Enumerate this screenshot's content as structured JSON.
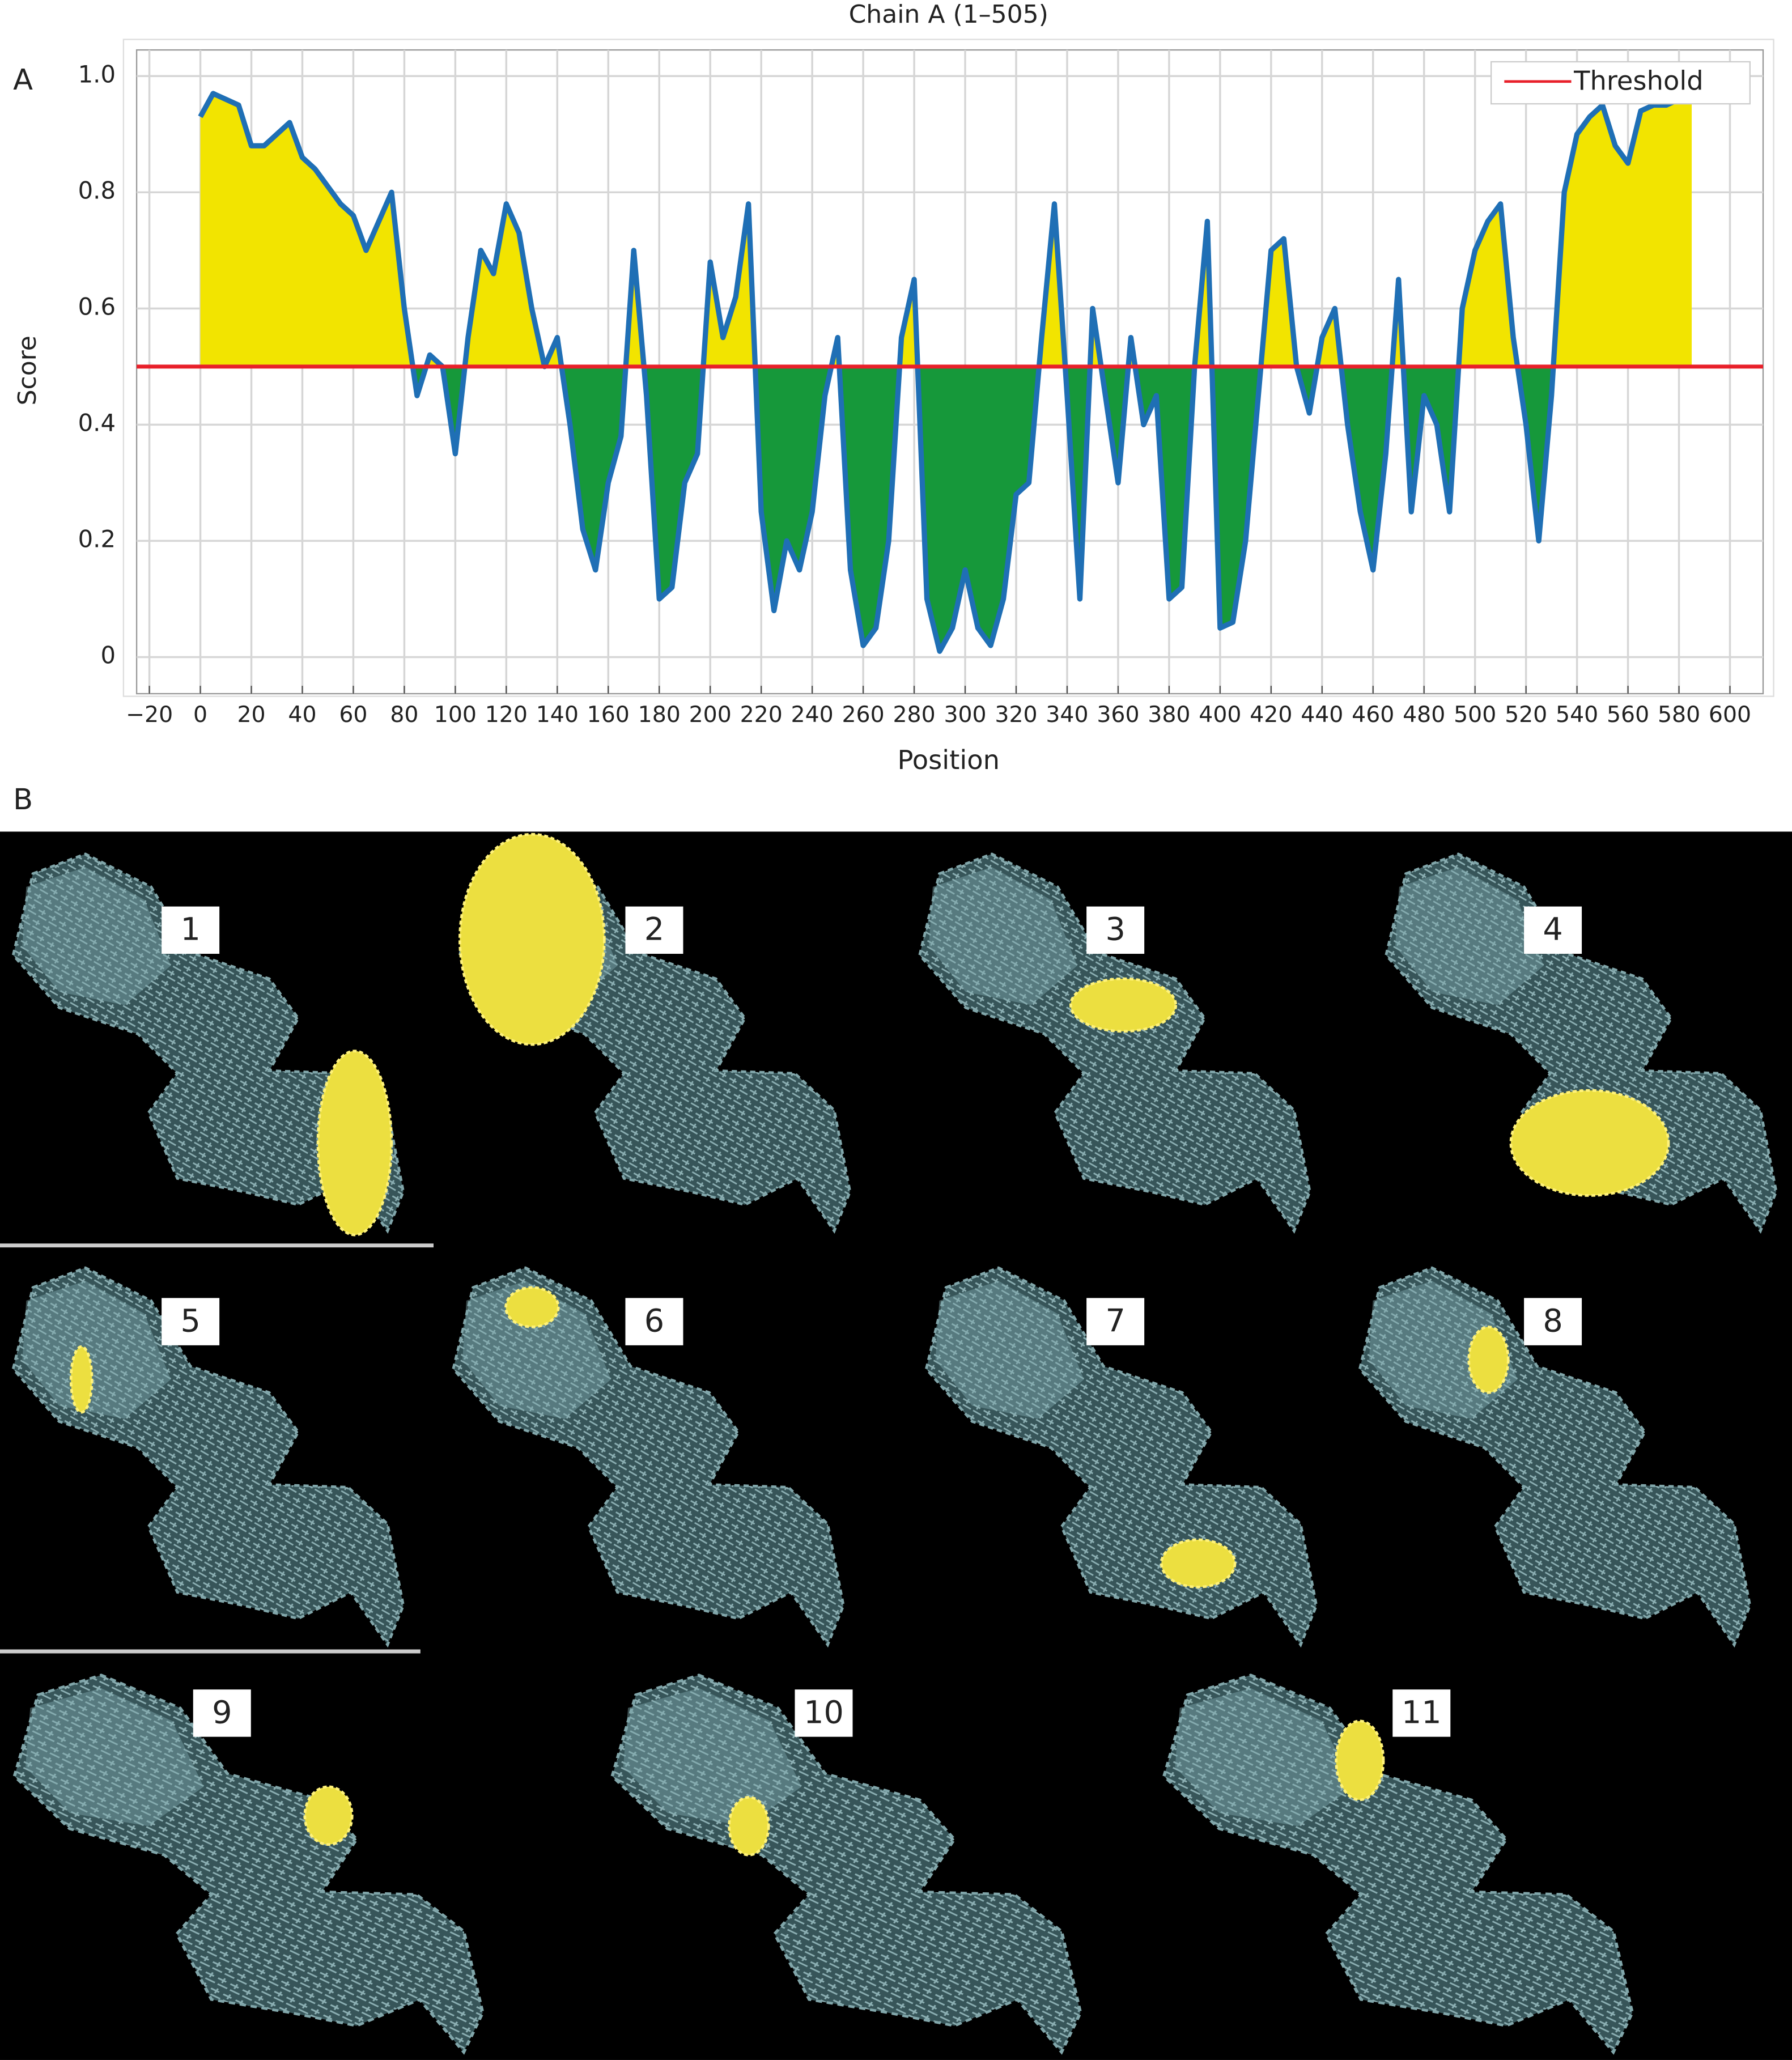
{
  "panels": [
    "A",
    "B"
  ],
  "structures": [
    "1",
    "2",
    "3",
    "4",
    "5",
    "6",
    "7",
    "8",
    "9",
    "10",
    "11"
  ],
  "chart_data": {
    "type": "line",
    "title": "Chain A (1–505)",
    "xlabel": "Position",
    "ylabel": "Score",
    "x": [
      0,
      5,
      10,
      15,
      20,
      25,
      30,
      35,
      40,
      45,
      50,
      55,
      60,
      65,
      70,
      75,
      80,
      85,
      90,
      95,
      100,
      105,
      110,
      115,
      120,
      125,
      130,
      135,
      140,
      145,
      150,
      155,
      160,
      165,
      170,
      175,
      180,
      185,
      190,
      195,
      200,
      205,
      210,
      215,
      220,
      225,
      230,
      235,
      240,
      245,
      250,
      255,
      260,
      265,
      270,
      275,
      280,
      285,
      290,
      295,
      300,
      305,
      310,
      315,
      320,
      325,
      330,
      335,
      340,
      345,
      350,
      355,
      360,
      365,
      370,
      375,
      380,
      385,
      390,
      395,
      400,
      405,
      410,
      415,
      420,
      425,
      430,
      435,
      440,
      445,
      450,
      455,
      460,
      465,
      470,
      475,
      480,
      485,
      490,
      495,
      500,
      505,
      510,
      515,
      520,
      525,
      530,
      535,
      540,
      545,
      550,
      555,
      560,
      565,
      570,
      575,
      580,
      585
    ],
    "values": [
      0.93,
      0.97,
      0.96,
      0.95,
      0.88,
      0.88,
      0.9,
      0.92,
      0.86,
      0.84,
      0.81,
      0.78,
      0.76,
      0.7,
      0.75,
      0.8,
      0.6,
      0.45,
      0.52,
      0.5,
      0.35,
      0.55,
      0.7,
      0.66,
      0.78,
      0.73,
      0.6,
      0.5,
      0.55,
      0.4,
      0.22,
      0.15,
      0.3,
      0.38,
      0.7,
      0.45,
      0.1,
      0.12,
      0.3,
      0.35,
      0.68,
      0.55,
      0.62,
      0.78,
      0.25,
      0.08,
      0.2,
      0.15,
      0.25,
      0.45,
      0.55,
      0.15,
      0.02,
      0.05,
      0.2,
      0.55,
      0.65,
      0.1,
      0.01,
      0.05,
      0.15,
      0.05,
      0.02,
      0.1,
      0.28,
      0.3,
      0.55,
      0.78,
      0.45,
      0.1,
      0.6,
      0.45,
      0.3,
      0.55,
      0.4,
      0.45,
      0.1,
      0.12,
      0.5,
      0.75,
      0.05,
      0.06,
      0.2,
      0.45,
      0.7,
      0.72,
      0.5,
      0.42,
      0.55,
      0.6,
      0.4,
      0.25,
      0.15,
      0.35,
      0.65,
      0.25,
      0.45,
      0.4,
      0.25,
      0.6,
      0.7,
      0.75,
      0.78,
      0.55,
      0.4,
      0.2,
      0.45,
      0.8,
      0.9,
      0.93,
      0.95,
      0.88,
      0.85,
      0.94,
      0.95,
      0.95,
      0.96,
      0.96
    ],
    "color": "#1f6fb5",
    "above_color": "#f2e400",
    "below_color": "#16983a",
    "threshold": {
      "name": "Threshold",
      "value": 0.5,
      "color": "#e8202a"
    },
    "xlim": [
      -25,
      613
    ],
    "ylim": [
      -0.063,
      1.045
    ],
    "xticks": [
      {
        "value": -20,
        "label": "−20"
      },
      0,
      20,
      40,
      60,
      80,
      100,
      120,
      140,
      160,
      180,
      200,
      220,
      240,
      260,
      280,
      300,
      320,
      340,
      360,
      380,
      400,
      420,
      440,
      460,
      480,
      500,
      520,
      540,
      560,
      580,
      600
    ],
    "yticks": [
      0,
      0.2,
      0.4,
      0.6,
      0.8,
      {
        "value": 1,
        "label": "1.0"
      }
    ],
    "grid": true,
    "legend": "upper right"
  }
}
